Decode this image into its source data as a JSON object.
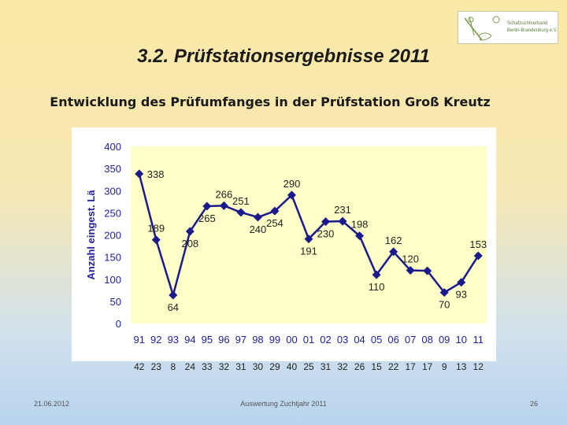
{
  "slide": {
    "title": "3.2. Prüfstationsergebnisse 2011",
    "subtitle": "Entwicklung des Prüfumfanges in der Prüfstation Groß Kreutz",
    "footer_date": "21.06.2012",
    "footer_center": "Auswertung Zuchtjahr 2011",
    "page_number": "26"
  },
  "logo": {
    "line1": "Schafzuchtverband",
    "line2": "Berlin-Brandenburg e.V."
  },
  "colors": {
    "plot_bg": "#ffffc8",
    "series": "#1a1a8c",
    "axis_text": "#2020a0"
  },
  "chart_data": {
    "type": "line",
    "title": "",
    "xlabel": "",
    "ylabel": "Anzahl eingest. Lä",
    "ylim": [
      0,
      400
    ],
    "yticks": [
      0,
      50,
      100,
      150,
      200,
      250,
      300,
      350,
      400
    ],
    "grid": false,
    "legend": "none",
    "categories": [
      "91",
      "92",
      "93",
      "94",
      "95",
      "96",
      "97",
      "98",
      "99",
      "00",
      "01",
      "02",
      "03",
      "04",
      "05",
      "06",
      "07",
      "08",
      "09",
      "10",
      "11"
    ],
    "series": [
      {
        "values": [
          338,
          189,
          64,
          208,
          265,
          266,
          251,
          240,
          254,
          290,
          191,
          230,
          231,
          198,
          110,
          162,
          120,
          119,
          70,
          93,
          153
        ]
      }
    ],
    "data_labels": [
      "338",
      "189",
      "64",
      "208",
      "265",
      "266",
      "251",
      "240",
      "254",
      "290",
      "191",
      "230",
      "231",
      "198",
      "110",
      "162",
      "120",
      "",
      "70",
      "93",
      "153"
    ],
    "secondary_row": [
      "42",
      "23",
      "8",
      "24",
      "33",
      "32",
      "31",
      "30",
      "29",
      "40",
      "25",
      "31",
      "32",
      "26",
      "15",
      "22",
      "17",
      "17",
      "9",
      "13",
      "12"
    ]
  }
}
